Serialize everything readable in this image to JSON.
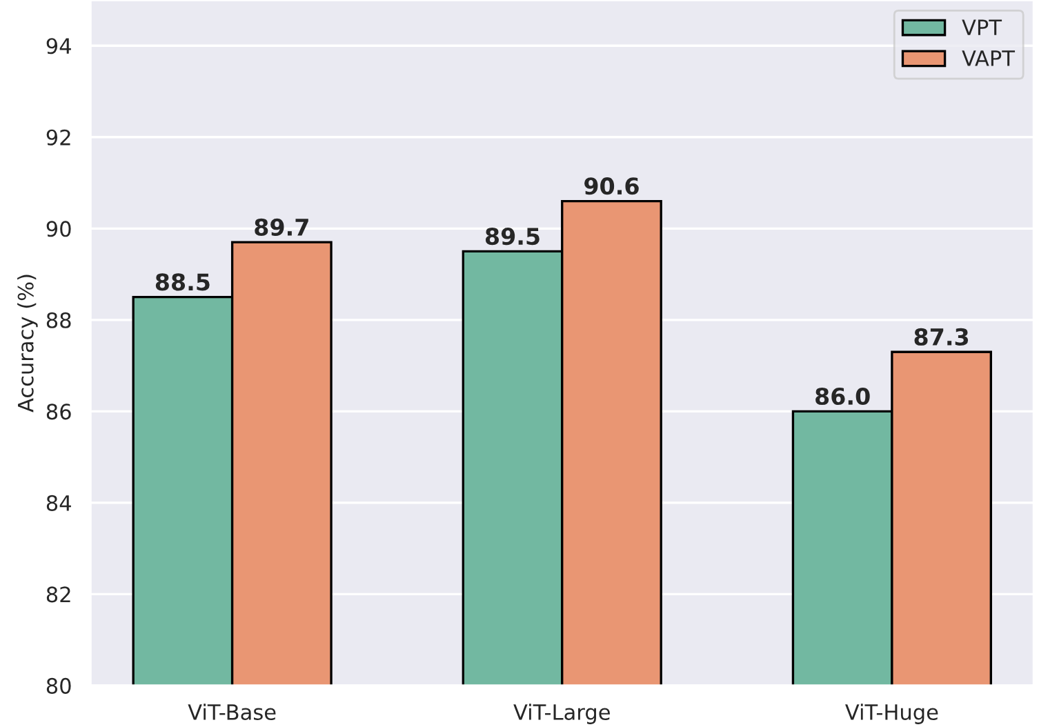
{
  "chart_data": {
    "type": "bar",
    "ylabel": "Accuracy (%)",
    "categories": [
      "ViT-Base",
      "ViT-Large",
      "ViT-Huge"
    ],
    "series": [
      {
        "name": "VPT",
        "color": "#72b8a1",
        "values": [
          88.5,
          89.5,
          86.0
        ],
        "value_labels": [
          "88.5",
          "89.5",
          "86.0"
        ]
      },
      {
        "name": "VAPT",
        "color": "#e99673",
        "values": [
          89.7,
          90.6,
          87.3
        ],
        "value_labels": [
          "89.7",
          "90.6",
          "87.3"
        ]
      }
    ],
    "ylim": [
      80,
      95
    ],
    "yticks": [
      80,
      82,
      84,
      86,
      88,
      90,
      92,
      94
    ],
    "grid": "y",
    "legend": "top right"
  }
}
